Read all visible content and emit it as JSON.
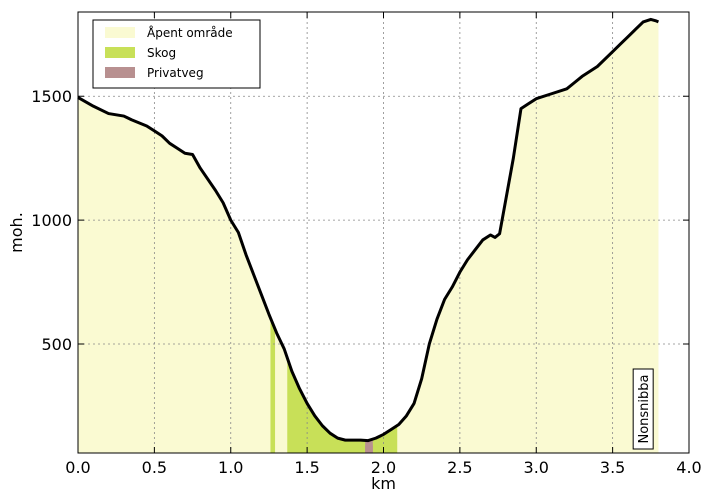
{
  "chart_data": {
    "type": "area",
    "title": "",
    "xlabel": "km",
    "ylabel": "moh.",
    "xlim": [
      0.0,
      4.0
    ],
    "ylim": [
      60,
      1840
    ],
    "xticks": [
      0.0,
      0.5,
      1.0,
      1.5,
      2.0,
      2.5,
      3.0,
      3.5,
      4.0
    ],
    "xtick_labels": [
      "0.0",
      "0.5",
      "1.0",
      "1.5",
      "2.0",
      "2.5",
      "3.0",
      "3.5",
      "4.0"
    ],
    "yticks": [
      500,
      1000,
      1500
    ],
    "ytick_labels": [
      "500",
      "1000",
      "1500"
    ],
    "grid": true,
    "legend_position": "top-left",
    "legend": [
      {
        "label": "Åpent område",
        "color": "#fafad2"
      },
      {
        "label": "Skog",
        "color": "#c8e058"
      },
      {
        "label": "Privatveg",
        "color": "#b89090"
      }
    ],
    "line_color": "#000000",
    "profile": {
      "x": [
        0.0,
        0.1,
        0.2,
        0.3,
        0.35,
        0.45,
        0.5,
        0.55,
        0.6,
        0.65,
        0.7,
        0.75,
        0.8,
        0.9,
        0.95,
        1.0,
        1.05,
        1.1,
        1.15,
        1.2,
        1.25,
        1.3,
        1.35,
        1.4,
        1.45,
        1.5,
        1.55,
        1.6,
        1.65,
        1.7,
        1.75,
        1.8,
        1.85,
        1.9,
        1.95,
        2.0,
        2.05,
        2.1,
        2.15,
        2.2,
        2.25,
        2.3,
        2.35,
        2.4,
        2.45,
        2.5,
        2.55,
        2.6,
        2.65,
        2.7,
        2.73,
        2.76,
        2.8,
        2.85,
        2.9,
        2.95,
        3.0,
        3.1,
        3.2,
        3.25,
        3.3,
        3.4,
        3.5,
        3.55,
        3.6,
        3.65,
        3.7,
        3.75,
        3.78,
        3.8
      ],
      "elevation": [
        1495,
        1460,
        1430,
        1420,
        1405,
        1380,
        1360,
        1340,
        1310,
        1290,
        1270,
        1265,
        1210,
        1120,
        1070,
        1000,
        950,
        860,
        780,
        700,
        620,
        545,
        480,
        390,
        320,
        260,
        210,
        170,
        140,
        120,
        112,
        112,
        112,
        110,
        120,
        135,
        155,
        175,
        210,
        260,
        360,
        500,
        600,
        680,
        730,
        790,
        840,
        880,
        920,
        940,
        930,
        945,
        1080,
        1250,
        1450,
        1470,
        1490,
        1510,
        1530,
        1555,
        1580,
        1620,
        1680,
        1710,
        1740,
        1770,
        1800,
        1810,
        1805,
        1800
      ]
    },
    "bands": [
      {
        "name": "Åpent område",
        "x_start": 0.0,
        "x_end": 3.8
      },
      {
        "name": "Skog",
        "x_start": 1.26,
        "x_end": 1.29
      },
      {
        "name": "Skog",
        "x_start": 1.37,
        "x_end": 2.09
      },
      {
        "name": "Privatveg",
        "x_start": 1.88,
        "x_end": 1.93
      }
    ],
    "annotations": [
      {
        "text": "Nonsnibba",
        "x": 3.7,
        "y": 60,
        "rotation": -90
      }
    ]
  }
}
